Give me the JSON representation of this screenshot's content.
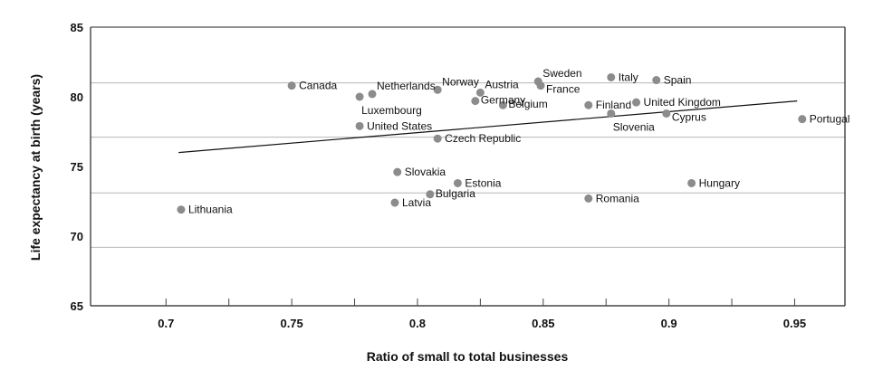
{
  "chart_data": {
    "type": "scatter",
    "title": "",
    "xlabel": "Ratio of small to total businesses",
    "ylabel": "Life expectancy at birth (years)",
    "xlim": [
      0.67,
      0.97
    ],
    "ylim": [
      65,
      85
    ],
    "x_ticks": [
      0.7,
      0.75,
      0.8,
      0.85,
      0.9,
      0.95
    ],
    "x_tick_labels": [
      "0.7",
      "0.75",
      "0.8",
      "0.85",
      "0.9",
      "0.95"
    ],
    "y_ticks": [
      65,
      70,
      75,
      80,
      85
    ],
    "y_tick_labels": [
      "65",
      "70",
      "75",
      "80",
      "85"
    ],
    "gridlines_y": [
      69.2,
      73.1,
      77.1,
      81.0,
      85.0
    ],
    "point_color": "#8c8c8c",
    "trendline": {
      "x": [
        0.705,
        0.951
      ],
      "y": [
        76.0,
        79.7
      ]
    },
    "points": [
      {
        "label": "Lithuania",
        "x": 0.706,
        "y": 71.9,
        "pos": "right"
      },
      {
        "label": "Canada",
        "x": 0.75,
        "y": 80.8,
        "pos": "right"
      },
      {
        "label": "Luxembourg",
        "x": 0.777,
        "y": 80.0,
        "pos": "below"
      },
      {
        "label": "Netherlands",
        "x": 0.782,
        "y": 80.2,
        "pos": "above-right"
      },
      {
        "label": "United States",
        "x": 0.777,
        "y": 77.9,
        "pos": "right"
      },
      {
        "label": "Slovakia",
        "x": 0.792,
        "y": 74.6,
        "pos": "right"
      },
      {
        "label": "Latvia",
        "x": 0.791,
        "y": 72.4,
        "pos": "right"
      },
      {
        "label": "Bulgaria",
        "x": 0.805,
        "y": 73.0,
        "pos": "right-tight"
      },
      {
        "label": "Norway",
        "x": 0.808,
        "y": 80.5,
        "pos": "above-right"
      },
      {
        "label": "Czech Republic",
        "x": 0.808,
        "y": 77.0,
        "pos": "right"
      },
      {
        "label": "Estonia",
        "x": 0.816,
        "y": 73.8,
        "pos": "right"
      },
      {
        "label": "Germany",
        "x": 0.823,
        "y": 79.7,
        "pos": "right-tight"
      },
      {
        "label": "Austria",
        "x": 0.825,
        "y": 80.3,
        "pos": "above-right"
      },
      {
        "label": "Belgium",
        "x": 0.834,
        "y": 79.4,
        "pos": "right-tight"
      },
      {
        "label": "Sweden",
        "x": 0.848,
        "y": 81.1,
        "pos": "above-right"
      },
      {
        "label": "France",
        "x": 0.849,
        "y": 80.8,
        "pos": "right-below"
      },
      {
        "label": "Finland",
        "x": 0.868,
        "y": 79.4,
        "pos": "right"
      },
      {
        "label": "Romania",
        "x": 0.868,
        "y": 72.7,
        "pos": "right"
      },
      {
        "label": "Italy",
        "x": 0.877,
        "y": 81.4,
        "pos": "right"
      },
      {
        "label": "Slovenia",
        "x": 0.877,
        "y": 78.8,
        "pos": "below"
      },
      {
        "label": "United Kingdom",
        "x": 0.887,
        "y": 79.6,
        "pos": "right"
      },
      {
        "label": "Spain",
        "x": 0.895,
        "y": 81.2,
        "pos": "right"
      },
      {
        "label": "Cyprus",
        "x": 0.899,
        "y": 78.8,
        "pos": "right-below"
      },
      {
        "label": "Hungary",
        "x": 0.909,
        "y": 73.8,
        "pos": "right"
      },
      {
        "label": "Portugal",
        "x": 0.953,
        "y": 78.4,
        "pos": "right"
      }
    ]
  }
}
